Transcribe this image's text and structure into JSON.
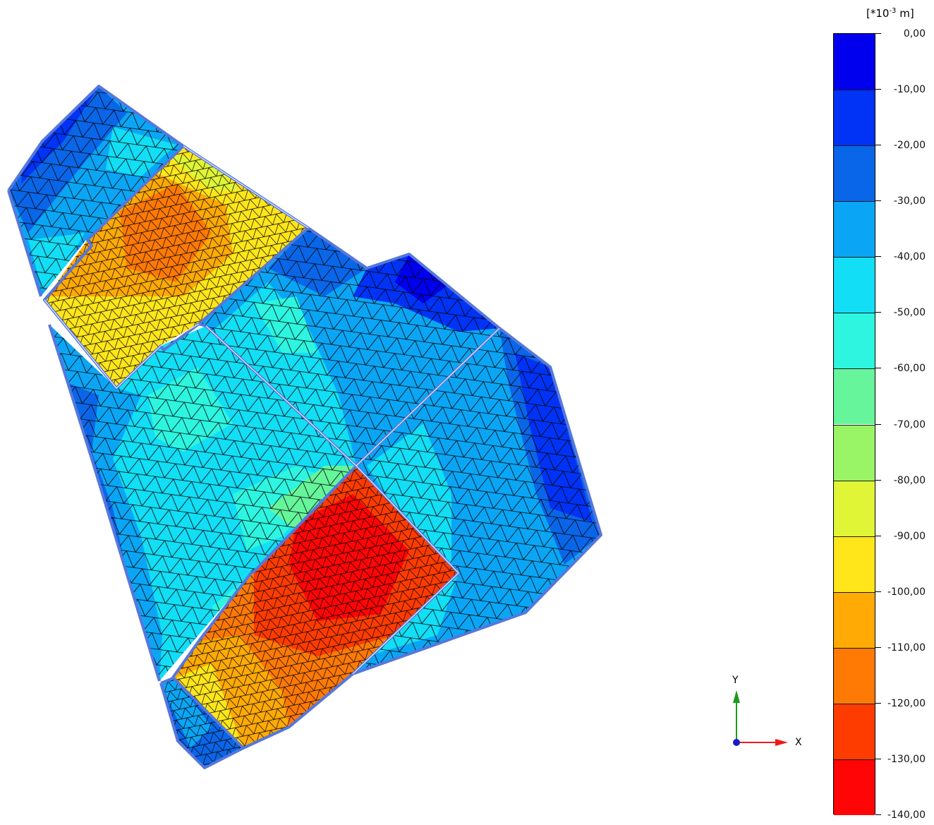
{
  "legend": {
    "unit_prefix": "[*10",
    "unit_exp": "-3",
    "unit_suffix": " m]",
    "labels": [
      "0,00",
      "-10,00",
      "-20,00",
      "-30,00",
      "-40,00",
      "-50,00",
      "-60,00",
      "-70,00",
      "-80,00",
      "-90,00",
      "-100,00",
      "-110,00",
      "-120,00",
      "-130,00",
      "-140,00"
    ],
    "colors": [
      "#0000ee",
      "#0033f5",
      "#0a66e8",
      "#0aa6f5",
      "#12def5",
      "#2ef5e0",
      "#66f59a",
      "#9af566",
      "#e0f535",
      "#ffe61a",
      "#ffaa05",
      "#ff7a05",
      "#ff3c00",
      "#ff0505"
    ]
  },
  "axes": {
    "y_label": "Y",
    "x_label": "X"
  },
  "plot": {
    "outline_color": "#5577dd",
    "mesh_color": "#000000"
  }
}
